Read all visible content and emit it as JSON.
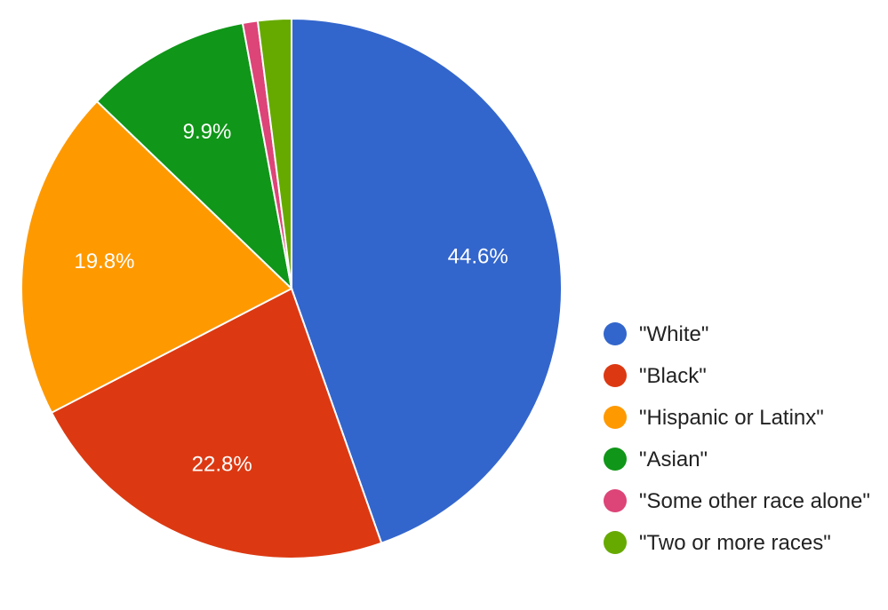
{
  "chart_data": {
    "type": "pie",
    "title": "",
    "legend_position": "right",
    "slices": [
      {
        "label": "\"White\"",
        "value": 44.6,
        "color": "#3366cc",
        "data_label": "44.6%"
      },
      {
        "label": "\"Black\"",
        "value": 22.8,
        "color": "#dc3912",
        "data_label": "22.8%"
      },
      {
        "label": "\"Hispanic or Latinx\"",
        "value": 19.8,
        "color": "#ff9900",
        "data_label": "19.8%"
      },
      {
        "label": "\"Asian\"",
        "value": 9.9,
        "color": "#109618",
        "data_label": "9.9%"
      },
      {
        "label": "\"Some other race alone\"",
        "value": 0.9,
        "color": "#dd4477",
        "data_label": ""
      },
      {
        "label": "\"Two or more races\"",
        "value": 2.0,
        "color": "#66aa00",
        "data_label": ""
      }
    ]
  }
}
